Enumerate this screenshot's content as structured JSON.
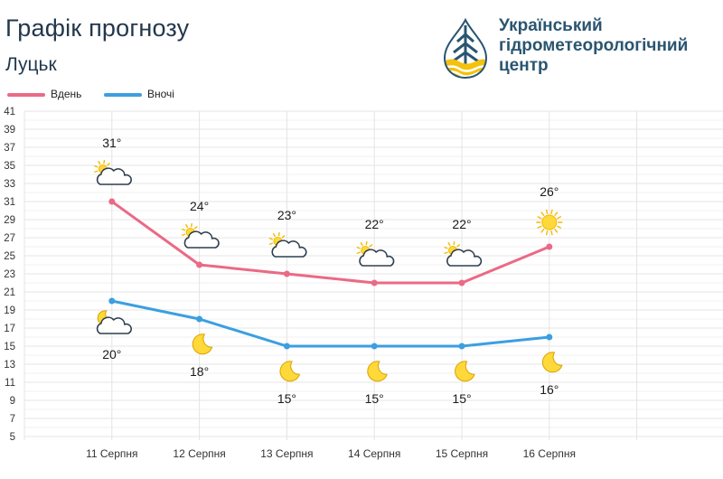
{
  "header": {
    "title": "Графік прогнозу",
    "city": "Луцьк"
  },
  "logo": {
    "line1": "Український",
    "line2": "гідрометеорологічний",
    "line3": "центр"
  },
  "colors": {
    "day": "#ea6a85",
    "night": "#3b9fe0",
    "grid": "#e4e4e4",
    "logo_blue": "#2a5570",
    "logo_yellow": "#f4c20d"
  },
  "chart_data": {
    "type": "line",
    "categories": [
      "11 Серпня",
      "12 Серпня",
      "13 Серпня",
      "14 Серпня",
      "15 Серпня",
      "16 Серпня"
    ],
    "series": [
      {
        "name": "Вдень",
        "values": [
          31,
          24,
          23,
          22,
          22,
          26
        ],
        "labels": [
          "31°",
          "24°",
          "23°",
          "22°",
          "22°",
          "26°"
        ],
        "icons": [
          "partly-cloudy-icon",
          "partly-cloudy-icon",
          "partly-cloudy-icon",
          "partly-cloudy-icon",
          "partly-cloudy-icon",
          "sun-icon"
        ]
      },
      {
        "name": "Вночі",
        "values": [
          20,
          18,
          15,
          15,
          15,
          16
        ],
        "labels": [
          "20°",
          "18°",
          "15°",
          "15°",
          "15°",
          "16°"
        ],
        "icons": [
          "moon-cloud-icon",
          "moon-icon",
          "moon-icon",
          "moon-icon",
          "moon-icon",
          "moon-icon"
        ]
      }
    ],
    "yticks": [
      "41",
      "39",
      "37",
      "35",
      "33",
      "31",
      "29",
      "27",
      "25",
      "23",
      "21",
      "19",
      "17",
      "15",
      "13",
      "11",
      "9",
      "7",
      "5"
    ],
    "ylim": [
      5,
      41
    ],
    "grid": true,
    "legend": "top-left"
  }
}
